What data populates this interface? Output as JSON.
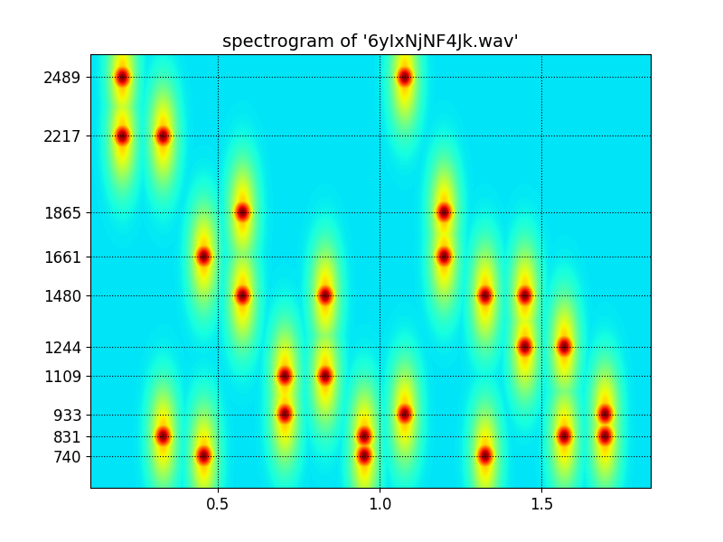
{
  "chart_data": {
    "type": "heatmap",
    "title": "spectrogram of '6yIxNjNF4Jk.wav'",
    "x": [
      0.204,
      0.33,
      0.456,
      0.576,
      0.707,
      0.832,
      0.953,
      1.078,
      1.2,
      1.327,
      1.45,
      1.572,
      1.698
    ],
    "y": [
      740,
      831,
      933,
      1109,
      1244,
      1480,
      1661,
      1865,
      2217,
      2489
    ],
    "cells": [
      [
        0,
        0,
        0,
        0,
        0,
        0,
        0,
        0,
        1,
        1
      ],
      [
        0,
        1,
        0,
        0,
        0,
        0,
        0,
        0,
        1,
        0
      ],
      [
        1,
        0,
        0,
        0,
        0,
        0,
        1,
        0,
        0,
        0
      ],
      [
        0,
        0,
        0,
        0,
        0,
        1,
        0,
        1,
        0,
        0
      ],
      [
        0,
        0,
        1,
        1,
        0,
        0,
        0,
        0,
        0,
        0
      ],
      [
        0,
        0,
        0,
        1,
        0,
        1,
        0,
        0,
        0,
        0
      ],
      [
        1,
        1,
        0,
        0,
        0,
        0,
        0,
        0,
        0,
        0
      ],
      [
        0,
        0,
        1,
        0,
        0,
        0,
        0,
        0,
        0,
        1
      ],
      [
        0,
        0,
        0,
        0,
        0,
        0,
        1,
        1,
        0,
        0
      ],
      [
        1,
        0,
        0,
        0,
        0,
        1,
        0,
        0,
        0,
        0
      ],
      [
        0,
        0,
        0,
        0,
        1,
        1,
        0,
        0,
        0,
        0
      ],
      [
        0,
        1,
        0,
        0,
        1,
        0,
        0,
        0,
        0,
        0
      ],
      [
        0,
        1,
        1,
        0,
        0,
        0,
        0,
        0,
        0,
        0
      ]
    ],
    "color_range": [
      0,
      1
    ],
    "xlim": [
      0.106,
      1.838
    ],
    "ylim": [
      594,
      2593
    ],
    "xticks": [
      0.5,
      1.0,
      1.5
    ],
    "yticks": [
      740,
      831,
      933,
      1109,
      1244,
      1480,
      1661,
      1865,
      2217,
      2489
    ],
    "grid": true
  }
}
